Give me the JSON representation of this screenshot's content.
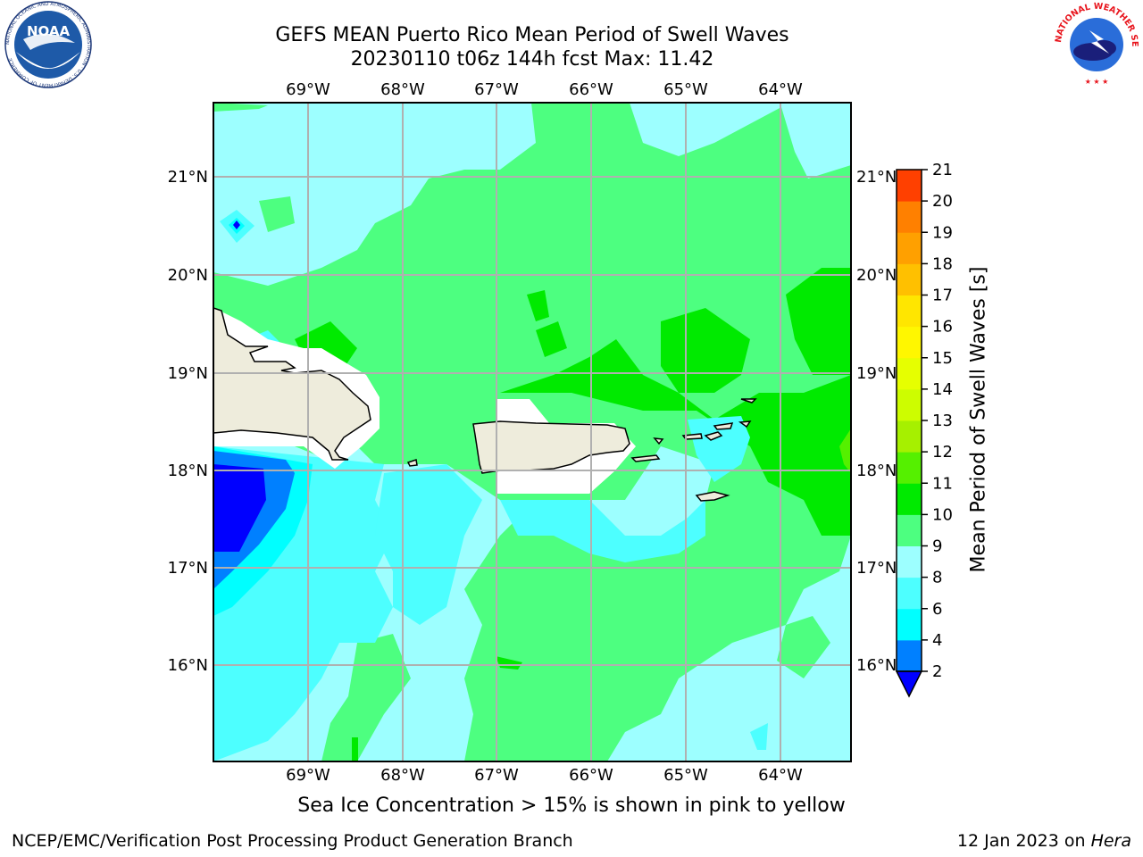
{
  "title": {
    "line1": "GEFS MEAN Puerto Rico Mean Period of Swell Waves",
    "line2": "20230110 t06z 144h fcst   Max: 11.42"
  },
  "map": {
    "region": "Puerto Rico",
    "lon_ticks": [
      "69°W",
      "68°W",
      "67°W",
      "66°W",
      "65°W",
      "64°W"
    ],
    "lat_ticks": [
      "21°N",
      "20°N",
      "19°N",
      "18°N",
      "17°N",
      "16°N"
    ],
    "land_color": "#eeecdc",
    "ocean_colors": {
      "c6_8": "#4dffff",
      "c8_9": "#9dffff",
      "c9_10": "#4dff80",
      "c10_11": "#00ea00",
      "c4_6": "#00ffff",
      "c2_4": "#0080ff",
      "c_below2": "#0000ff"
    }
  },
  "colorbar": {
    "label": "Mean Period of Swell Waves [s]",
    "ticks": [
      "2",
      "4",
      "6",
      "8",
      "9",
      "10",
      "11",
      "12",
      "13",
      "14",
      "15",
      "16",
      "17",
      "18",
      "19",
      "20",
      "21"
    ],
    "colors": [
      "#0080ff",
      "#00ffff",
      "#4dffff",
      "#9dffff",
      "#4dff80",
      "#00ea00",
      "#55f000",
      "#a6f000",
      "#cdfd00",
      "#e6ff00",
      "#fff700",
      "#ffe600",
      "#ffc000",
      "#ffa000",
      "#ff8000",
      "#ff4000"
    ],
    "extend_color": "#0000ff"
  },
  "note": "Sea Ice Concentration > 15% is shown in pink to yellow",
  "footer": {
    "left": "NCEP/EMC/Verification Post Processing Product Generation Branch",
    "right_prefix": "12 Jan 2023 on ",
    "right_host": "Hera"
  },
  "logos": {
    "left": "NOAA",
    "left_ring": "NATIONAL OCEANIC AND ATMOSPHERIC ADMINISTRATION · U.S. DEPARTMENT OF COMMERCE",
    "right_ring": "NATIONAL WEATHER SERVICE"
  }
}
